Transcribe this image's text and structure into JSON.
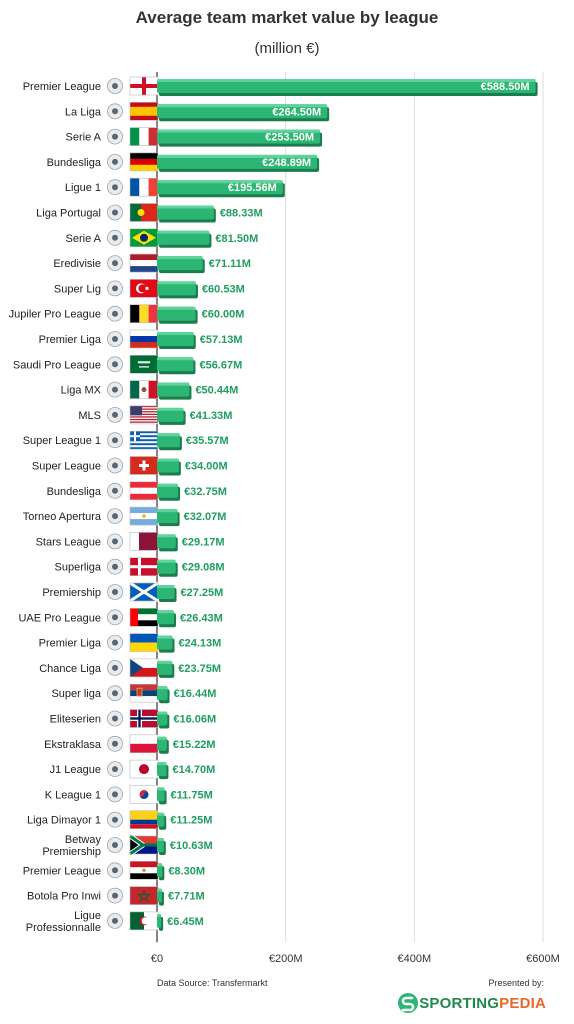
{
  "chart_data": {
    "type": "bar",
    "orientation": "horizontal",
    "title": "Average team market value by league",
    "subtitle": "(million €)",
    "xlim": [
      0,
      600
    ],
    "xticks": [
      {
        "value": 0,
        "label": "€0"
      },
      {
        "value": 200,
        "label": "€200M"
      },
      {
        "value": 400,
        "label": "€400M"
      },
      {
        "value": 600,
        "label": "€600M"
      }
    ],
    "grid": true,
    "bar_color": "#2bb673",
    "categories": [
      "Premier League",
      "La Liga",
      "Serie A",
      "Bundesliga",
      "Ligue 1",
      "Liga Portugal",
      "Serie A",
      "Eredivisie",
      "Super Lig",
      "Jupiler Pro League",
      "Premier Liga",
      "Saudi Pro League",
      "Liga MX",
      "MLS",
      "Super League 1",
      "Super League",
      "Bundesliga",
      "Torneo Apertura",
      "Stars League",
      "Superliga",
      "Premiership",
      "UAE Pro League",
      "Premier Liga",
      "Chance Liga",
      "Super liga",
      "Eliteserien",
      "Ekstraklasa",
      "J1 League",
      "K League 1",
      "Liga Dimayor 1",
      "Betway Premiership",
      "Premier League",
      "Botola Pro Inwi",
      "Ligue Professionnalle"
    ],
    "values": [
      588.5,
      264.5,
      253.5,
      248.89,
      195.56,
      88.33,
      81.5,
      71.11,
      60.53,
      60.0,
      57.13,
      56.67,
      50.44,
      41.33,
      35.57,
      34.0,
      32.75,
      32.07,
      29.17,
      29.08,
      27.25,
      26.43,
      24.13,
      23.75,
      16.44,
      16.06,
      15.22,
      14.7,
      11.75,
      11.25,
      10.63,
      8.3,
      7.71,
      6.45
    ],
    "value_labels": [
      "€588.50M",
      "€264.50M",
      "€253.50M",
      "€248.89M",
      "€195.56M",
      "€88.33M",
      "€81.50M",
      "€71.11M",
      "€60.53M",
      "€60.00M",
      "€57.13M",
      "€56.67M",
      "€50.44M",
      "€41.33M",
      "€35.57M",
      "€34.00M",
      "€32.75M",
      "€32.07M",
      "€29.17M",
      "€29.08M",
      "€27.25M",
      "€26.43M",
      "€24.13M",
      "€23.75M",
      "€16.44M",
      "€16.06M",
      "€15.22M",
      "€14.70M",
      "€11.75M",
      "€11.25M",
      "€10.63M",
      "€8.30M",
      "€7.71M",
      "€6.45M"
    ],
    "flag_icons": [
      "flag-england-icon",
      "flag-spain-icon",
      "flag-italy-icon",
      "flag-germany-icon",
      "flag-france-icon",
      "flag-portugal-icon",
      "flag-brazil-icon",
      "flag-netherlands-icon",
      "flag-turkey-icon",
      "flag-belgium-icon",
      "flag-russia-icon",
      "flag-saudi-arabia-icon",
      "flag-mexico-icon",
      "flag-usa-icon",
      "flag-greece-icon",
      "flag-switzerland-icon",
      "flag-austria-icon",
      "flag-argentina-icon",
      "flag-qatar-icon",
      "flag-denmark-icon",
      "flag-scotland-icon",
      "flag-uae-icon",
      "flag-ukraine-icon",
      "flag-czech-icon",
      "flag-serbia-icon",
      "flag-norway-icon",
      "flag-poland-icon",
      "flag-japan-icon",
      "flag-south-korea-icon",
      "flag-colombia-icon",
      "flag-south-africa-icon",
      "flag-egypt-icon",
      "flag-morocco-icon",
      "flag-algeria-icon"
    ]
  },
  "footer": {
    "source": "Data Source: Transfermarkt",
    "presented_by": "Presented by:",
    "brand_part1": "SPORTING",
    "brand_part2": "PEDIA"
  }
}
